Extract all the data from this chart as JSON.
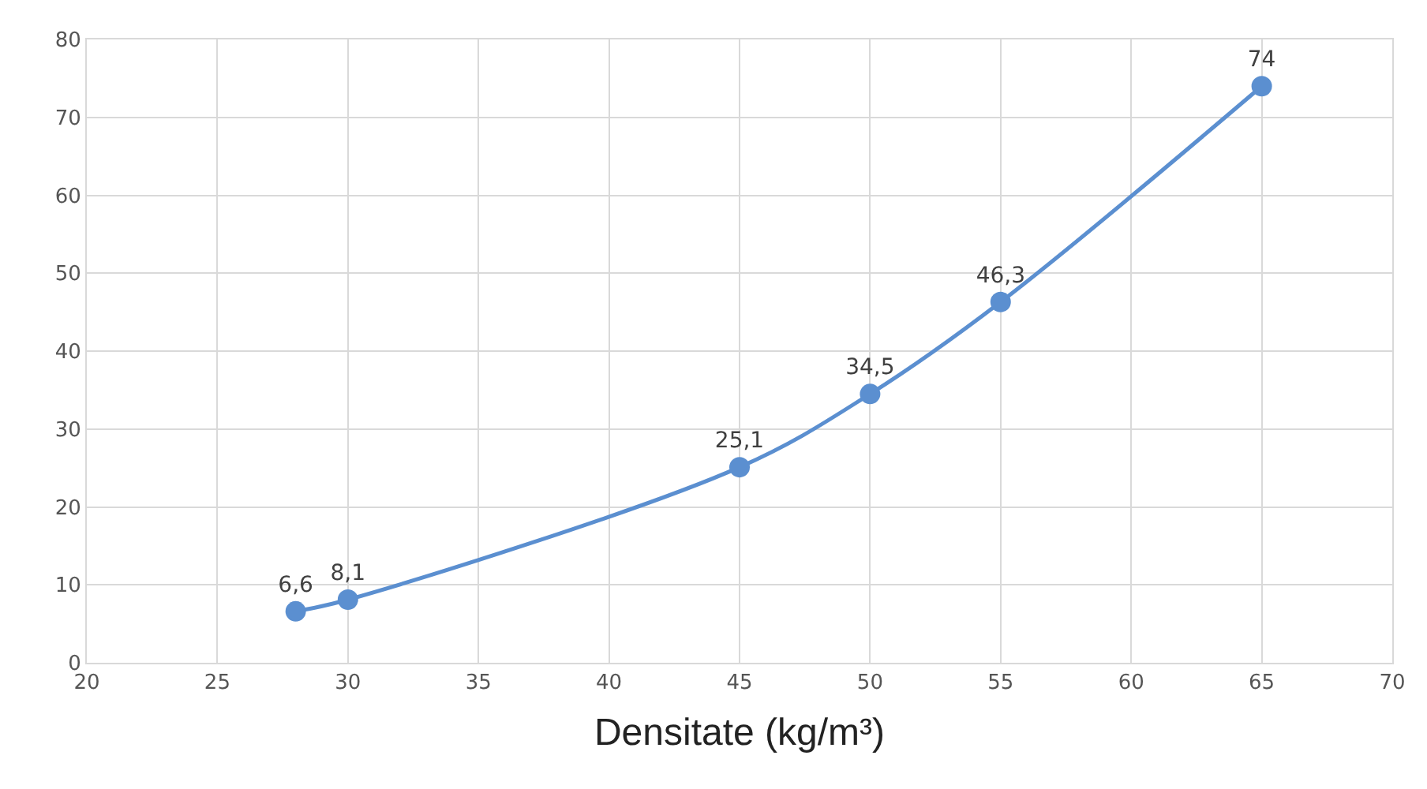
{
  "chart_data": {
    "type": "line",
    "xlabel": "Densitate (kg/m³)",
    "x": [
      28,
      30,
      45,
      50,
      55,
      65
    ],
    "series": [
      {
        "color": "#5b8fd0",
        "values": [
          6.6,
          8.1,
          25.1,
          34.5,
          46.3,
          74
        ],
        "value_labels": [
          "6,6",
          "8,1",
          "25,1",
          "34,5",
          "46,3",
          "74"
        ]
      }
    ],
    "xlim": [
      20,
      70
    ],
    "xticks": [
      20,
      25,
      30,
      35,
      40,
      45,
      50,
      55,
      60,
      65,
      70
    ],
    "ylim": [
      0,
      80
    ],
    "yticks": [
      0,
      10,
      20,
      30,
      40,
      50,
      60,
      70,
      80
    ],
    "grid": true,
    "marker": "circle",
    "line_style": "solid"
  }
}
